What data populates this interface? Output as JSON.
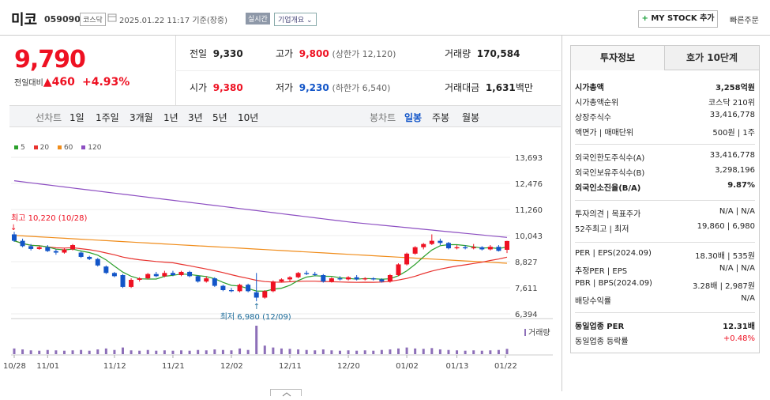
{
  "header": {
    "name": "미코",
    "code": "059090",
    "market": "코스닥",
    "datetime": "2025.01.22 11:17 기준(장중)",
    "realtime": "실시간",
    "company_info": "기업개요",
    "my_stock": "MY STOCK 추가",
    "quick_order": "빠른주문"
  },
  "price": {
    "current": "9,790",
    "change_label": "전일대비",
    "change": "460",
    "percent": "+4.93%"
  },
  "quotes": {
    "prev_label": "전일",
    "prev": "9,330",
    "high_label": "고가",
    "high": "9,800",
    "upper_limit": "(상한가 12,120)",
    "volume_label": "거래량",
    "volume": "170,584",
    "open_label": "시가",
    "open": "9,380",
    "low_label": "저가",
    "low": "9,230",
    "lower_limit": "(하한가 6,540)",
    "amount_label": "거래대금",
    "amount": "1,631",
    "amount_unit": "백만"
  },
  "period_tabs": {
    "label": "선차트",
    "items": [
      "1일",
      "1주일",
      "3개월",
      "1년",
      "3년",
      "5년",
      "10년"
    ]
  },
  "candle_tabs": {
    "label": "봉차트",
    "items": [
      "일봉",
      "주봉",
      "월봉"
    ],
    "selected": "일봉"
  },
  "legend": [
    {
      "name": "5",
      "color": "#2ca02c"
    },
    {
      "name": "20",
      "color": "#e8332f"
    },
    {
      "name": "60",
      "color": "#f08c1a"
    },
    {
      "name": "120",
      "color": "#8d4fc2"
    }
  ],
  "chart_data": {
    "type": "candlestick",
    "yticks": [
      "13,693",
      "12,476",
      "11,260",
      "10,043",
      "8,827",
      "7,611",
      "6,394"
    ],
    "ylim": [
      6394,
      13693
    ],
    "xticks": [
      "10/28",
      "11/01",
      "11/12",
      "11/21",
      "12/02",
      "12/11",
      "12/20",
      "01/02",
      "01/13",
      "01/22"
    ],
    "high_annotation": "최고 10,220 (10/28)",
    "low_annotation": "최저 6,980 (12/09)",
    "volume_label": "거래량",
    "candles": [
      {
        "o": 10100,
        "c": 9800,
        "h": 10220,
        "l": 9750
      },
      {
        "o": 9800,
        "c": 9550,
        "h": 9900,
        "l": 9500
      },
      {
        "o": 9550,
        "c": 9420,
        "h": 9650,
        "l": 9350
      },
      {
        "o": 9420,
        "c": 9500,
        "h": 9560,
        "l": 9380
      },
      {
        "o": 9500,
        "c": 9320,
        "h": 9600,
        "l": 9280
      },
      {
        "o": 9320,
        "c": 9250,
        "h": 9400,
        "l": 9150
      },
      {
        "o": 9250,
        "c": 9400,
        "h": 9450,
        "l": 9200
      },
      {
        "o": 9400,
        "c": 9600,
        "h": 9650,
        "l": 9350
      },
      {
        "o": 9250,
        "c": 9050,
        "h": 9300,
        "l": 9000
      },
      {
        "o": 9050,
        "c": 8950,
        "h": 9100,
        "l": 8900
      },
      {
        "o": 8950,
        "c": 8650,
        "h": 9000,
        "l": 8600
      },
      {
        "o": 8600,
        "c": 8300,
        "h": 8650,
        "l": 8250
      },
      {
        "o": 8300,
        "c": 8150,
        "h": 8350,
        "l": 8100
      },
      {
        "o": 8200,
        "c": 7650,
        "h": 8250,
        "l": 7600
      },
      {
        "o": 7650,
        "c": 7980,
        "h": 8050,
        "l": 7600
      },
      {
        "o": 7980,
        "c": 8050,
        "h": 8100,
        "l": 7900
      },
      {
        "o": 8050,
        "c": 8250,
        "h": 8300,
        "l": 8000
      },
      {
        "o": 8250,
        "c": 8150,
        "h": 8350,
        "l": 8100
      },
      {
        "o": 8150,
        "c": 8300,
        "h": 8400,
        "l": 8100
      },
      {
        "o": 8300,
        "c": 8200,
        "h": 8400,
        "l": 8150
      },
      {
        "o": 8200,
        "c": 8350,
        "h": 8400,
        "l": 8150
      },
      {
        "o": 8350,
        "c": 8150,
        "h": 8400,
        "l": 8100
      },
      {
        "o": 8150,
        "c": 7900,
        "h": 8200,
        "l": 7850
      },
      {
        "o": 7900,
        "c": 8050,
        "h": 8150,
        "l": 7850
      },
      {
        "o": 8050,
        "c": 7700,
        "h": 8100,
        "l": 7650
      },
      {
        "o": 7700,
        "c": 7500,
        "h": 7750,
        "l": 7450
      },
      {
        "o": 7500,
        "c": 7450,
        "h": 7600,
        "l": 7400
      },
      {
        "o": 7450,
        "c": 7750,
        "h": 7800,
        "l": 7400
      },
      {
        "o": 7750,
        "c": 7450,
        "h": 7800,
        "l": 7400
      },
      {
        "o": 7400,
        "c": 7150,
        "h": 8300,
        "l": 6980
      },
      {
        "o": 7150,
        "c": 7450,
        "h": 7500,
        "l": 7100
      },
      {
        "o": 7450,
        "c": 7900,
        "h": 7950,
        "l": 7400
      },
      {
        "o": 7900,
        "c": 8000,
        "h": 8050,
        "l": 7850
      },
      {
        "o": 8000,
        "c": 8100,
        "h": 8150,
        "l": 7900
      },
      {
        "o": 8100,
        "c": 8300,
        "h": 8350,
        "l": 8050
      },
      {
        "o": 8300,
        "c": 8250,
        "h": 8400,
        "l": 8200
      },
      {
        "o": 8250,
        "c": 8200,
        "h": 8350,
        "l": 8150
      },
      {
        "o": 8200,
        "c": 7900,
        "h": 8250,
        "l": 7850
      },
      {
        "o": 7900,
        "c": 8050,
        "h": 8100,
        "l": 7850
      },
      {
        "o": 8050,
        "c": 8000,
        "h": 8150,
        "l": 7950
      },
      {
        "o": 8000,
        "c": 8100,
        "h": 8150,
        "l": 7950
      },
      {
        "o": 8100,
        "c": 8000,
        "h": 8200,
        "l": 7950
      },
      {
        "o": 8000,
        "c": 8050,
        "h": 8100,
        "l": 7950
      },
      {
        "o": 8050,
        "c": 8000,
        "h": 8100,
        "l": 7950
      },
      {
        "o": 8000,
        "c": 7900,
        "h": 8050,
        "l": 7850
      },
      {
        "o": 7900,
        "c": 8200,
        "h": 8250,
        "l": 7850
      },
      {
        "o": 8200,
        "c": 8700,
        "h": 8750,
        "l": 8150
      },
      {
        "o": 8700,
        "c": 9200,
        "h": 9250,
        "l": 8650
      },
      {
        "o": 9200,
        "c": 9500,
        "h": 9550,
        "l": 9150
      },
      {
        "o": 9500,
        "c": 9650,
        "h": 9700,
        "l": 9400
      },
      {
        "o": 9650,
        "c": 9800,
        "h": 10100,
        "l": 9600
      },
      {
        "o": 9800,
        "c": 9700,
        "h": 9900,
        "l": 9600
      },
      {
        "o": 9700,
        "c": 9450,
        "h": 9750,
        "l": 9400
      },
      {
        "o": 9450,
        "c": 9500,
        "h": 9600,
        "l": 9400
      },
      {
        "o": 9500,
        "c": 9450,
        "h": 9600,
        "l": 9400
      },
      {
        "o": 9450,
        "c": 9500,
        "h": 9650,
        "l": 9400
      },
      {
        "o": 9500,
        "c": 9400,
        "h": 9550,
        "l": 9350
      },
      {
        "o": 9400,
        "c": 9520,
        "h": 9600,
        "l": 9350
      },
      {
        "o": 9520,
        "c": 9330,
        "h": 9600,
        "l": 9300
      },
      {
        "o": 9380,
        "c": 9790,
        "h": 9800,
        "l": 9230
      }
    ],
    "volumes": [
      30,
      25,
      20,
      18,
      22,
      20,
      18,
      20,
      22,
      18,
      25,
      30,
      22,
      35,
      20,
      18,
      22,
      18,
      20,
      18,
      20,
      18,
      22,
      20,
      25,
      22,
      20,
      30,
      22,
      150,
      45,
      35,
      30,
      28,
      25,
      22,
      20,
      25,
      20,
      18,
      20,
      18,
      20,
      18,
      22,
      25,
      30,
      35,
      30,
      28,
      32,
      25,
      22,
      20,
      18,
      20,
      18,
      20,
      22,
      28
    ]
  },
  "panel": {
    "tab_active": "투자정보",
    "tab_other": "호가 10단계",
    "rows": [
      {
        "k": "시가총액",
        "v": "3,258억원",
        "bold": true
      },
      {
        "k": "시가총액순위",
        "v": "코스닥 210위"
      },
      {
        "k": "상장주식수",
        "v": "33,416,778"
      },
      {
        "k": "액면가 | 매매단위",
        "v": "500원 | 1주"
      },
      {
        "k": "외국인한도주식수(A)",
        "v": "33,416,778"
      },
      {
        "k": "외국인보유주식수(B)",
        "v": "3,298,196"
      },
      {
        "k": "외국인소진율(B/A)",
        "v": "9.87%",
        "bold": true
      },
      {
        "k": "투자의견 | 목표주가",
        "v": "N/A | N/A"
      },
      {
        "k": "52주최고 | 최저",
        "v": "19,860 | 6,980"
      },
      {
        "k": "PER | EPS(2024.09)",
        "v": "18.30배 | 535원"
      },
      {
        "k": "추정PER | EPS",
        "v": "N/A | N/A"
      },
      {
        "k": "PBR | BPS(2024.09)",
        "v": "3.28배 | 2,987원"
      },
      {
        "k": "배당수익률",
        "v": "N/A"
      },
      {
        "k": "동일업종 PER",
        "v": "12.31배",
        "bold": true
      },
      {
        "k": "동일업종 등락률",
        "v": "+0.48%",
        "red": true
      }
    ]
  }
}
